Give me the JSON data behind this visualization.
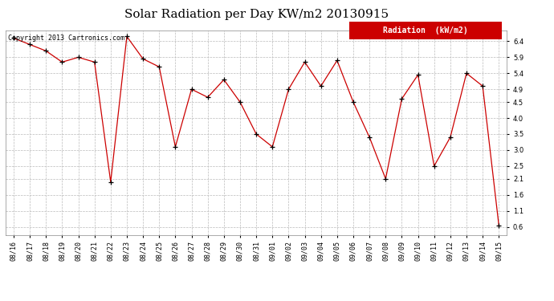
{
  "title": "Solar Radiation per Day KW/m2 20130915",
  "copyright": "Copyright 2013 Cartronics.com",
  "legend_label": "Radiation  (kW/m2)",
  "dates": [
    "08/16",
    "08/17",
    "08/18",
    "08/19",
    "08/20",
    "08/21",
    "08/22",
    "08/23",
    "08/24",
    "08/25",
    "08/26",
    "08/27",
    "08/28",
    "08/29",
    "08/30",
    "08/31",
    "09/01",
    "09/02",
    "09/03",
    "09/04",
    "09/05",
    "09/06",
    "09/07",
    "09/08",
    "09/09",
    "09/10",
    "09/11",
    "09/12",
    "09/13",
    "09/14",
    "09/15"
  ],
  "values": [
    6.5,
    6.3,
    6.1,
    5.75,
    5.9,
    5.75,
    2.0,
    6.55,
    5.85,
    5.6,
    3.1,
    4.9,
    4.65,
    5.2,
    4.5,
    3.5,
    3.1,
    4.9,
    5.75,
    5.0,
    5.8,
    4.5,
    3.4,
    2.1,
    4.6,
    5.35,
    2.5,
    3.4,
    5.4,
    5.0,
    0.65
  ],
  "line_color": "#cc0000",
  "marker_color": "#000000",
  "bg_color": "#ffffff",
  "grid_color": "#bbbbbb",
  "yticks": [
    0.6,
    1.1,
    1.6,
    2.1,
    2.5,
    3.0,
    3.5,
    4.0,
    4.5,
    4.9,
    5.4,
    5.9,
    6.4
  ],
  "ylim": [
    0.35,
    6.75
  ],
  "title_fontsize": 11,
  "copyright_fontsize": 6,
  "tick_fontsize": 6,
  "legend_fontsize": 7,
  "legend_color": "#cc0000"
}
